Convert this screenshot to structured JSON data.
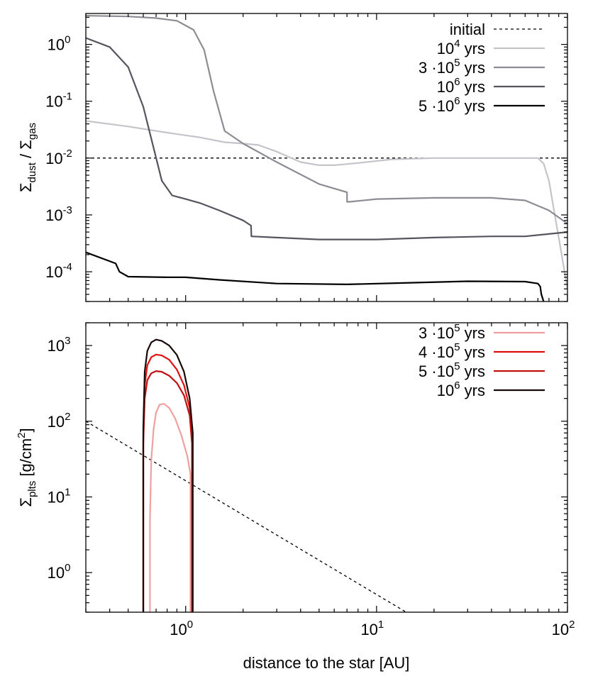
{
  "chart_data": [
    {
      "type": "line",
      "ylabel": {
        "prefix": "Σ",
        "sub1": "dust",
        "mid": " / Σ",
        "sub2": "gas"
      },
      "xscale": "log",
      "yscale": "log",
      "xlim": [
        0.3,
        100
      ],
      "ylim": [
        3e-05,
        3.5
      ],
      "x_tick_values": [
        1,
        10,
        100
      ],
      "y_ticks": [
        {
          "value": 1,
          "base": "10",
          "exp": "0"
        },
        {
          "value": 0.1,
          "base": "10",
          "exp": "-1"
        },
        {
          "value": 0.01,
          "base": "10",
          "exp": "-2"
        },
        {
          "value": 0.001,
          "base": "10",
          "exp": "-3"
        },
        {
          "value": 0.0001,
          "base": "10",
          "exp": "-4"
        }
      ],
      "legend_position": "top-right",
      "series": [
        {
          "name": "initial",
          "label": {
            "pre": "initial",
            "exp": "",
            "post": ""
          },
          "color": "#000000",
          "dash": "4,4",
          "width": 1.3,
          "x": [
            0.3,
            100
          ],
          "y": [
            0.01,
            0.01
          ]
        },
        {
          "name": "10^4 yrs",
          "label": {
            "pre": "10",
            "exp": "4",
            "post": " yrs"
          },
          "color": "#c4c4cb",
          "dash": "",
          "width": 2.2,
          "x": [
            0.3,
            0.5,
            0.8,
            1.2,
            1.6,
            2.0,
            2.4,
            3.0,
            4.0,
            5.0,
            6.0,
            8.0,
            12,
            20,
            40,
            70,
            75,
            80,
            85,
            90,
            100
          ],
          "y": [
            0.045,
            0.036,
            0.028,
            0.023,
            0.019,
            0.018,
            0.017,
            0.013,
            0.0085,
            0.0075,
            0.0075,
            0.0082,
            0.0095,
            0.01,
            0.01,
            0.01,
            0.008,
            0.004,
            0.0012,
            0.0004,
            5e-05
          ]
        },
        {
          "name": "3·10^5 yrs",
          "label": {
            "pre": "3 ·10",
            "exp": "5",
            "post": " yrs"
          },
          "color": "#8c8c94",
          "dash": "",
          "width": 2.2,
          "x": [
            0.3,
            0.5,
            0.7,
            0.9,
            1.1,
            1.25,
            1.4,
            1.6,
            2.0,
            3.0,
            5.0,
            7.0,
            7.01,
            7.2,
            10,
            20,
            40,
            60,
            80,
            100
          ],
          "y": [
            3.2,
            3.1,
            2.9,
            2.6,
            1.8,
            0.8,
            0.15,
            0.03,
            0.018,
            0.0085,
            0.0035,
            0.0025,
            0.0017,
            0.0017,
            0.0019,
            0.002,
            0.002,
            0.0018,
            0.0012,
            0.0007
          ]
        },
        {
          "name": "10^6 yrs",
          "label": {
            "pre": "10",
            "exp": "6",
            "post": " yrs"
          },
          "color": "#55555f",
          "dash": "",
          "width": 2.2,
          "x": [
            0.3,
            0.4,
            0.5,
            0.6,
            0.68,
            0.75,
            0.85,
            1.0,
            1.2,
            1.5,
            2.0,
            2.2,
            2.21,
            3.0,
            5.0,
            10,
            20,
            40,
            60,
            100
          ],
          "y": [
            1.3,
            0.9,
            0.4,
            0.08,
            0.015,
            0.004,
            0.0022,
            0.0019,
            0.0016,
            0.0012,
            0.0008,
            0.00065,
            0.00042,
            0.0004,
            0.00037,
            0.00037,
            0.0004,
            0.00042,
            0.00042,
            0.0005
          ]
        },
        {
          "name": "5·10^6 yrs",
          "label": {
            "pre": "5 ·10",
            "exp": "6",
            "post": " yrs"
          },
          "color": "#000000",
          "dash": "",
          "width": 2.2,
          "x": [
            0.3,
            0.43,
            0.45,
            0.5,
            0.8,
            1.0,
            1.5,
            3.0,
            7.0,
            15,
            30,
            60,
            70,
            72,
            73,
            75
          ],
          "y": [
            0.00022,
            0.00014,
            0.0001,
            8.2e-05,
            8e-05,
            8e-05,
            7.2e-05,
            6.2e-05,
            6e-05,
            6.4e-05,
            6.8e-05,
            6.7e-05,
            6.2e-05,
            5.5e-05,
            4e-05,
            3e-05
          ]
        }
      ]
    },
    {
      "type": "line",
      "ylabel": {
        "prefix": "Σ",
        "sub": "plts",
        "rest": " [g/cm",
        "sup": "2",
        "end": "]"
      },
      "xlabel": "distance to the star [AU]",
      "xscale": "log",
      "yscale": "log",
      "xlim": [
        0.3,
        100
      ],
      "ylim": [
        0.3,
        2000
      ],
      "x_ticks": [
        {
          "value": 1,
          "base": "10",
          "exp": "0"
        },
        {
          "value": 10,
          "base": "10",
          "exp": "1"
        },
        {
          "value": 100,
          "base": "10",
          "exp": "2"
        }
      ],
      "y_ticks": [
        {
          "value": 1000,
          "base": "10",
          "exp": "3"
        },
        {
          "value": 100,
          "base": "10",
          "exp": "2"
        },
        {
          "value": 10,
          "base": "10",
          "exp": "1"
        },
        {
          "value": 1,
          "base": "10",
          "exp": "0"
        }
      ],
      "legend_position": "top-right",
      "reference_line": {
        "color": "#000000",
        "dash": "4,4",
        "width": 1.3,
        "x": [
          0.3,
          14.3
        ],
        "y": [
          100,
          0.3
        ]
      },
      "series": [
        {
          "name": "3·10^5 yrs",
          "label": {
            "pre": "3 ·10",
            "exp": "5",
            "post": " yrs"
          },
          "color": "#f0a0a0",
          "width": 2.2,
          "x": [
            0.65,
            0.65,
            0.66,
            0.68,
            0.7,
            0.73,
            0.77,
            0.82,
            0.88,
            0.95,
            1.02,
            1.06,
            1.06
          ],
          "y": [
            0.3,
            5,
            30,
            80,
            130,
            165,
            170,
            150,
            110,
            65,
            35,
            20,
            0.3
          ]
        },
        {
          "name": "4·10^5 yrs",
          "label": {
            "pre": "4 ·10",
            "exp": "5",
            "post": " yrs"
          },
          "color": "#e01010",
          "width": 2.2,
          "x": [
            0.6,
            0.6,
            0.61,
            0.63,
            0.66,
            0.7,
            0.75,
            0.82,
            0.9,
            0.98,
            1.05,
            1.08,
            1.08
          ],
          "y": [
            0.3,
            60,
            300,
            550,
            700,
            760,
            740,
            650,
            480,
            300,
            150,
            60,
            0.3
          ]
        },
        {
          "name": "5·10^5 yrs",
          "label": {
            "pre": "5 ·10",
            "exp": "5",
            "post": " yrs"
          },
          "color": "#c01010",
          "width": 2.2,
          "x": [
            0.6,
            0.6,
            0.61,
            0.63,
            0.66,
            0.7,
            0.75,
            0.82,
            0.9,
            0.98,
            1.05,
            1.08,
            1.08
          ],
          "y": [
            0.3,
            50,
            200,
            350,
            430,
            460,
            450,
            400,
            320,
            220,
            120,
            50,
            0.3
          ]
        },
        {
          "name": "10^6 yrs",
          "label": {
            "pre": "10",
            "exp": "6",
            "post": " yrs"
          },
          "color": "#180808",
          "width": 2.2,
          "x": [
            0.6,
            0.6,
            0.61,
            0.63,
            0.66,
            0.7,
            0.75,
            0.82,
            0.9,
            0.98,
            1.05,
            1.09,
            1.09
          ],
          "y": [
            0.3,
            80,
            450,
            850,
            1100,
            1200,
            1150,
            1000,
            750,
            450,
            200,
            70,
            0.3
          ]
        }
      ]
    }
  ]
}
